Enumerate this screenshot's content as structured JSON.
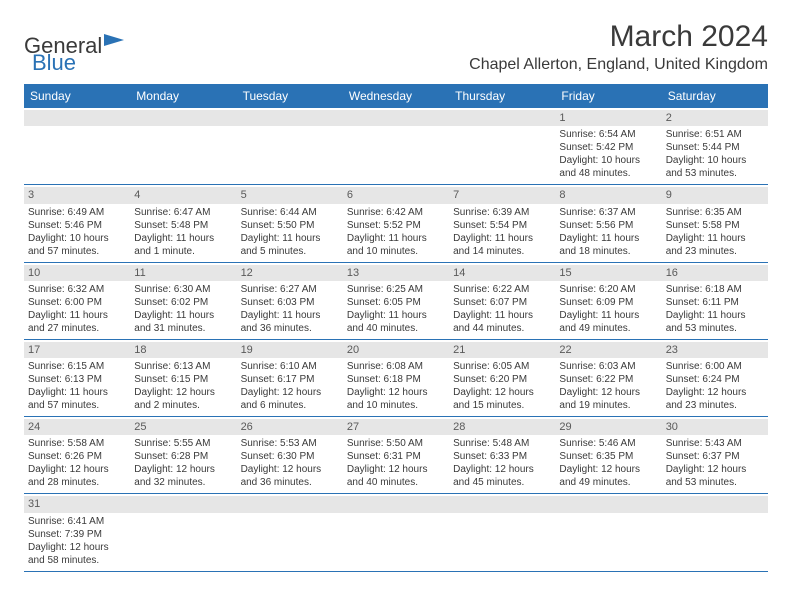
{
  "logo": {
    "word1": "General",
    "word2": "Blue"
  },
  "title": "March 2024",
  "location": "Chapel Allerton, England, United Kingdom",
  "colors": {
    "accent": "#2a72b5",
    "grayBand": "#e6e6e6",
    "text": "#3a3a3a"
  },
  "dayHeaders": [
    "Sunday",
    "Monday",
    "Tuesday",
    "Wednesday",
    "Thursday",
    "Friday",
    "Saturday"
  ],
  "weeks": [
    [
      null,
      null,
      null,
      null,
      null,
      {
        "n": "1",
        "sr": "Sunrise: 6:54 AM",
        "ss": "Sunset: 5:42 PM",
        "dl": "Daylight: 10 hours and 48 minutes."
      },
      {
        "n": "2",
        "sr": "Sunrise: 6:51 AM",
        "ss": "Sunset: 5:44 PM",
        "dl": "Daylight: 10 hours and 53 minutes."
      }
    ],
    [
      {
        "n": "3",
        "sr": "Sunrise: 6:49 AM",
        "ss": "Sunset: 5:46 PM",
        "dl": "Daylight: 10 hours and 57 minutes."
      },
      {
        "n": "4",
        "sr": "Sunrise: 6:47 AM",
        "ss": "Sunset: 5:48 PM",
        "dl": "Daylight: 11 hours and 1 minute."
      },
      {
        "n": "5",
        "sr": "Sunrise: 6:44 AM",
        "ss": "Sunset: 5:50 PM",
        "dl": "Daylight: 11 hours and 5 minutes."
      },
      {
        "n": "6",
        "sr": "Sunrise: 6:42 AM",
        "ss": "Sunset: 5:52 PM",
        "dl": "Daylight: 11 hours and 10 minutes."
      },
      {
        "n": "7",
        "sr": "Sunrise: 6:39 AM",
        "ss": "Sunset: 5:54 PM",
        "dl": "Daylight: 11 hours and 14 minutes."
      },
      {
        "n": "8",
        "sr": "Sunrise: 6:37 AM",
        "ss": "Sunset: 5:56 PM",
        "dl": "Daylight: 11 hours and 18 minutes."
      },
      {
        "n": "9",
        "sr": "Sunrise: 6:35 AM",
        "ss": "Sunset: 5:58 PM",
        "dl": "Daylight: 11 hours and 23 minutes."
      }
    ],
    [
      {
        "n": "10",
        "sr": "Sunrise: 6:32 AM",
        "ss": "Sunset: 6:00 PM",
        "dl": "Daylight: 11 hours and 27 minutes."
      },
      {
        "n": "11",
        "sr": "Sunrise: 6:30 AM",
        "ss": "Sunset: 6:02 PM",
        "dl": "Daylight: 11 hours and 31 minutes."
      },
      {
        "n": "12",
        "sr": "Sunrise: 6:27 AM",
        "ss": "Sunset: 6:03 PM",
        "dl": "Daylight: 11 hours and 36 minutes."
      },
      {
        "n": "13",
        "sr": "Sunrise: 6:25 AM",
        "ss": "Sunset: 6:05 PM",
        "dl": "Daylight: 11 hours and 40 minutes."
      },
      {
        "n": "14",
        "sr": "Sunrise: 6:22 AM",
        "ss": "Sunset: 6:07 PM",
        "dl": "Daylight: 11 hours and 44 minutes."
      },
      {
        "n": "15",
        "sr": "Sunrise: 6:20 AM",
        "ss": "Sunset: 6:09 PM",
        "dl": "Daylight: 11 hours and 49 minutes."
      },
      {
        "n": "16",
        "sr": "Sunrise: 6:18 AM",
        "ss": "Sunset: 6:11 PM",
        "dl": "Daylight: 11 hours and 53 minutes."
      }
    ],
    [
      {
        "n": "17",
        "sr": "Sunrise: 6:15 AM",
        "ss": "Sunset: 6:13 PM",
        "dl": "Daylight: 11 hours and 57 minutes."
      },
      {
        "n": "18",
        "sr": "Sunrise: 6:13 AM",
        "ss": "Sunset: 6:15 PM",
        "dl": "Daylight: 12 hours and 2 minutes."
      },
      {
        "n": "19",
        "sr": "Sunrise: 6:10 AM",
        "ss": "Sunset: 6:17 PM",
        "dl": "Daylight: 12 hours and 6 minutes."
      },
      {
        "n": "20",
        "sr": "Sunrise: 6:08 AM",
        "ss": "Sunset: 6:18 PM",
        "dl": "Daylight: 12 hours and 10 minutes."
      },
      {
        "n": "21",
        "sr": "Sunrise: 6:05 AM",
        "ss": "Sunset: 6:20 PM",
        "dl": "Daylight: 12 hours and 15 minutes."
      },
      {
        "n": "22",
        "sr": "Sunrise: 6:03 AM",
        "ss": "Sunset: 6:22 PM",
        "dl": "Daylight: 12 hours and 19 minutes."
      },
      {
        "n": "23",
        "sr": "Sunrise: 6:00 AM",
        "ss": "Sunset: 6:24 PM",
        "dl": "Daylight: 12 hours and 23 minutes."
      }
    ],
    [
      {
        "n": "24",
        "sr": "Sunrise: 5:58 AM",
        "ss": "Sunset: 6:26 PM",
        "dl": "Daylight: 12 hours and 28 minutes."
      },
      {
        "n": "25",
        "sr": "Sunrise: 5:55 AM",
        "ss": "Sunset: 6:28 PM",
        "dl": "Daylight: 12 hours and 32 minutes."
      },
      {
        "n": "26",
        "sr": "Sunrise: 5:53 AM",
        "ss": "Sunset: 6:30 PM",
        "dl": "Daylight: 12 hours and 36 minutes."
      },
      {
        "n": "27",
        "sr": "Sunrise: 5:50 AM",
        "ss": "Sunset: 6:31 PM",
        "dl": "Daylight: 12 hours and 40 minutes."
      },
      {
        "n": "28",
        "sr": "Sunrise: 5:48 AM",
        "ss": "Sunset: 6:33 PM",
        "dl": "Daylight: 12 hours and 45 minutes."
      },
      {
        "n": "29",
        "sr": "Sunrise: 5:46 AM",
        "ss": "Sunset: 6:35 PM",
        "dl": "Daylight: 12 hours and 49 minutes."
      },
      {
        "n": "30",
        "sr": "Sunrise: 5:43 AM",
        "ss": "Sunset: 6:37 PM",
        "dl": "Daylight: 12 hours and 53 minutes."
      }
    ],
    [
      {
        "n": "31",
        "sr": "Sunrise: 6:41 AM",
        "ss": "Sunset: 7:39 PM",
        "dl": "Daylight: 12 hours and 58 minutes."
      },
      null,
      null,
      null,
      null,
      null,
      null
    ]
  ]
}
